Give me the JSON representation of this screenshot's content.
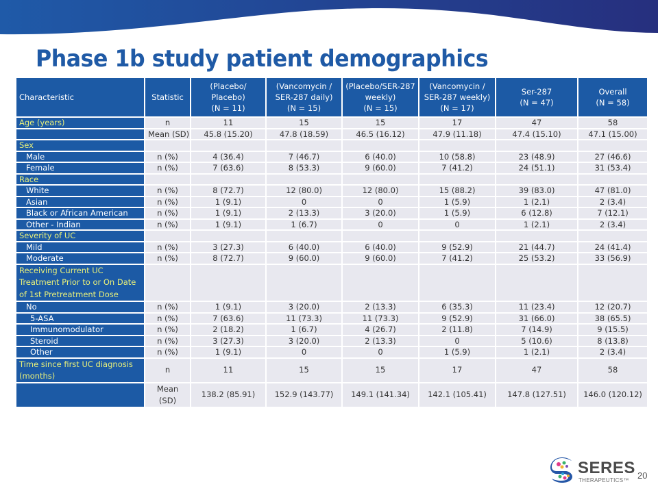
{
  "slide": {
    "title": "Phase 1b study patient demographics",
    "page_number": "20"
  },
  "logo": {
    "name": "SERES",
    "subtitle": "THERAPEUTICS™",
    "icon": "seres-logo-icon"
  },
  "table": {
    "headers": [
      {
        "lines": [
          "Characteristic"
        ]
      },
      {
        "lines": [
          "Statistic"
        ]
      },
      {
        "lines": [
          "(Placebo/",
          "Placebo)",
          "(N = 11)"
        ]
      },
      {
        "lines": [
          "(Vancomycin /",
          "SER-287 daily)",
          "(N = 15)"
        ]
      },
      {
        "lines": [
          "(Placebo/SER-287",
          "weekly)",
          "(N = 15)"
        ]
      },
      {
        "lines": [
          "(Vancomycin /",
          "SER-287 weekly)",
          "(N = 17)"
        ]
      },
      {
        "lines": [
          "Ser-287",
          "(N = 47)"
        ]
      },
      {
        "lines": [
          "Overall",
          "(N = 58)"
        ]
      }
    ],
    "rows": [
      {
        "label": "Age (years)",
        "type": "cat",
        "stat": "n",
        "values": [
          "11",
          "15",
          "15",
          "17",
          "47",
          "58"
        ]
      },
      {
        "label": "",
        "type": "plain",
        "stat": "Mean (SD)",
        "values": [
          "45.8 (15.20)",
          "47.8 (18.59)",
          "46.5 (16.12)",
          "47.9 (11.18)",
          "47.4 (15.10)",
          "47.1 (15.00)"
        ]
      },
      {
        "label": "Sex",
        "type": "cat",
        "stat": "",
        "values": [
          "",
          "",
          "",
          "",
          "",
          ""
        ]
      },
      {
        "label": "Male",
        "type": "sub",
        "stat": "n (%)",
        "values": [
          "4 (36.4)",
          "7 (46.7)",
          "6 (40.0)",
          "10 (58.8)",
          "23 (48.9)",
          "27 (46.6)"
        ]
      },
      {
        "label": "Female",
        "type": "sub",
        "stat": "n (%)",
        "values": [
          "7 (63.6)",
          "8 (53.3)",
          "9 (60.0)",
          "7 (41.2)",
          "24 (51.1)",
          "31 (53.4)"
        ]
      },
      {
        "label": "Race",
        "type": "cat",
        "stat": "",
        "values": [
          "",
          "",
          "",
          "",
          "",
          ""
        ]
      },
      {
        "label": "White",
        "type": "sub",
        "stat": "n (%)",
        "values": [
          "8 (72.7)",
          "12 (80.0)",
          "12 (80.0)",
          "15 (88.2)",
          "39 (83.0)",
          "47 (81.0)"
        ]
      },
      {
        "label": "Asian",
        "type": "sub",
        "stat": "n (%)",
        "values": [
          "1 (9.1)",
          "0",
          "0",
          "1 (5.9)",
          "1 (2.1)",
          "2 (3.4)"
        ]
      },
      {
        "label": "Black or African American",
        "type": "sub",
        "stat": "n (%)",
        "values": [
          "1 (9.1)",
          "2 (13.3)",
          "3 (20.0)",
          "1 (5.9)",
          "6 (12.8)",
          "7 (12.1)"
        ]
      },
      {
        "label": "Other - Indian",
        "type": "sub",
        "stat": "n (%)",
        "values": [
          "1 (9.1)",
          "1 (6.7)",
          "0",
          "0",
          "1 (2.1)",
          "2 (3.4)"
        ]
      },
      {
        "label": "Severity of UC",
        "type": "cat",
        "stat": "",
        "values": [
          "",
          "",
          "",
          "",
          "",
          ""
        ]
      },
      {
        "label": "Mild",
        "type": "sub",
        "stat": "n (%)",
        "values": [
          "3 (27.3)",
          "6 (40.0)",
          "6 (40.0)",
          "9 (52.9)",
          "21 (44.7)",
          "24 (41.4)"
        ]
      },
      {
        "label": "Moderate",
        "type": "sub",
        "stat": "n (%)",
        "values": [
          "8 (72.7)",
          "9 (60.0)",
          "9 (60.0)",
          "7 (41.2)",
          "25 (53.2)",
          "33 (56.9)"
        ]
      },
      {
        "label": "Receiving Current UC Treatment Prior to or On Date of 1st Pretreatment Dose",
        "type": "cat-tall",
        "stat": "",
        "values": [
          "",
          "",
          "",
          "",
          "",
          ""
        ]
      },
      {
        "label": "No",
        "type": "sub",
        "stat": "n (%)",
        "values": [
          "1 (9.1)",
          "3 (20.0)",
          "2 (13.3)",
          "6 (35.3)",
          "11 (23.4)",
          "12 (20.7)"
        ]
      },
      {
        "label": "5-ASA",
        "type": "subsub",
        "stat": "n (%)",
        "values": [
          "7 (63.6)",
          "11 (73.3)",
          "11 (73.3)",
          "9 (52.9)",
          "31 (66.0)",
          "38 (65.5)"
        ]
      },
      {
        "label": "Immunomodulator",
        "type": "subsub",
        "stat": "n (%)",
        "values": [
          "2 (18.2)",
          "1 (6.7)",
          "4 (26.7)",
          "2 (11.8)",
          "7 (14.9)",
          "9 (15.5)"
        ]
      },
      {
        "label": "Steroid",
        "type": "subsub",
        "stat": "n (%)",
        "values": [
          "3 (27.3)",
          "3 (20.0)",
          "2 (13.3)",
          "0",
          "5 (10.6)",
          "8 (13.8)"
        ]
      },
      {
        "label": "Other",
        "type": "subsub",
        "stat": "n (%)",
        "values": [
          "1 (9.1)",
          "0",
          "0",
          "1 (5.9)",
          "1 (2.1)",
          "2 (3.4)"
        ]
      },
      {
        "label": "Time since first UC diagnosis (months)",
        "type": "cat-mid",
        "stat": "n",
        "values": [
          "11",
          "15",
          "15",
          "17",
          "47",
          "58"
        ]
      },
      {
        "label": "",
        "type": "plain-mid",
        "stat": "Mean (SD)",
        "values": [
          "138.2 (85.91)",
          "152.9 (143.77)",
          "149.1 (141.34)",
          "142.1 (105.41)",
          "147.8 (127.51)",
          "146.0 (120.12)"
        ]
      }
    ]
  },
  "colors": {
    "brand_blue": "#1c5aa5",
    "title_blue": "#1f5aa6",
    "category_text": "#e8f07a",
    "cell_bg": "#e8e8ef"
  }
}
